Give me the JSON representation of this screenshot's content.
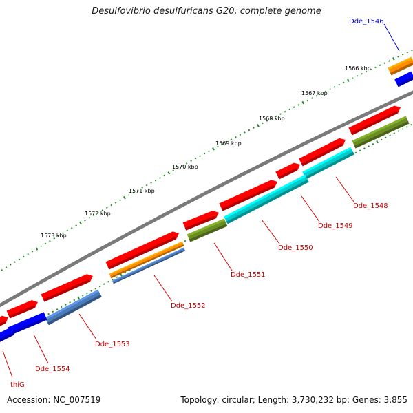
{
  "header": {
    "title": "Desulfovibrio desulfuricans G20, complete genome"
  },
  "footer": {
    "accession": "Accession: NC_007519",
    "summary": "Topology: circular; Length: 3,730,232 bp; Genes: 3,855"
  },
  "scale": {
    "unit": "kbp",
    "ticks": [
      "1566 kbp",
      "1567 kbp",
      "1568 kbp",
      "1569 kbp",
      "1570 kbp",
      "1571 kbp",
      "1572 kbp",
      "1573 kbp"
    ]
  },
  "genes": [
    {
      "label": "Dde_1546",
      "color": "#0000cc"
    },
    {
      "label": "Dde_1548",
      "color": "#cc0000"
    },
    {
      "label": "Dde_1549",
      "color": "#cc0000"
    },
    {
      "label": "Dde_1550",
      "color": "#cc0000"
    },
    {
      "label": "Dde_1551",
      "color": "#cc0000"
    },
    {
      "label": "Dde_1552",
      "color": "#cc0000"
    },
    {
      "label": "Dde_1553",
      "color": "#cc0000"
    },
    {
      "label": "Dde_1554",
      "color": "#cc0000"
    },
    {
      "label": "thiG",
      "color": "#cc0000"
    }
  ],
  "colors": {
    "cds": "#ff0000",
    "rrna_orange": "#ff8c00",
    "blue": "#0000ff",
    "steelblue": "#4a7ab8",
    "cyan": "#00cccc",
    "olive": "#6b8e23",
    "backbone": "#7a7a7a",
    "ticks": "#1a8a1a"
  }
}
